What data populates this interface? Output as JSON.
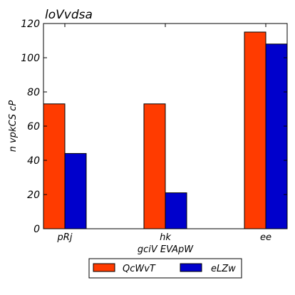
{
  "chart_data": {
    "type": "bar",
    "title": "loVvdsa",
    "xlabel": "gciV EVApW",
    "ylabel": "n vpkCS  cP",
    "categories": [
      "pRj",
      "hk",
      "ee"
    ],
    "series": [
      {
        "name": "QcWvT",
        "color": "#ff3b00",
        "values": [
          73,
          73,
          115
        ]
      },
      {
        "name": "eLZw",
        "color": "#0000cc",
        "values": [
          44,
          21,
          108
        ]
      }
    ],
    "ylim": [
      0,
      120
    ],
    "yticks": [
      0,
      20,
      40,
      60,
      80,
      100,
      120
    ],
    "grid": false,
    "legend_position": "bottom-center, outside plot"
  }
}
